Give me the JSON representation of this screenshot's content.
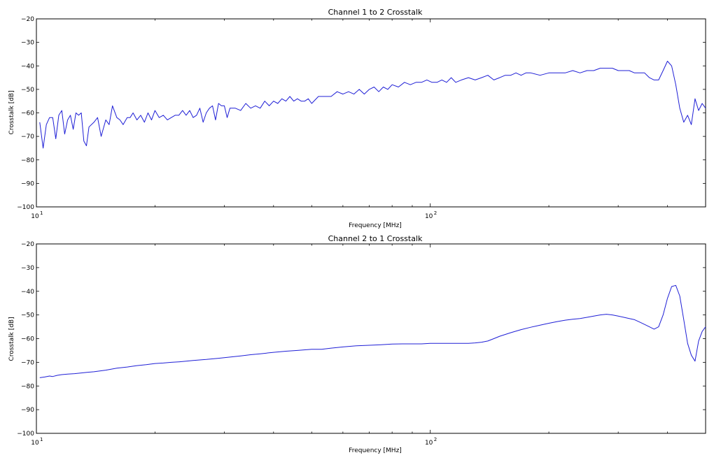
{
  "chart_data": [
    {
      "type": "line",
      "title": "Channel 1 to 2 Crosstalk",
      "xlabel": "Frequency [MHz]",
      "ylabel": "Crosstalk [dB]",
      "xscale": "log",
      "xlim": [
        10,
        500
      ],
      "ylim": [
        -100,
        -20
      ],
      "yticks": [
        -100,
        -90,
        -80,
        -70,
        -60,
        -50,
        -40,
        -30,
        -20
      ],
      "xtick_labels": [
        {
          "base": "10",
          "exp": "1",
          "value": 10
        },
        {
          "base": "10",
          "exp": "2",
          "value": 100
        }
      ],
      "color": "#1f1fd6",
      "grid": false,
      "series": [
        {
          "x": [
            10.2,
            10.4,
            10.6,
            10.8,
            11.0,
            11.2,
            11.4,
            11.6,
            11.8,
            12.0,
            12.2,
            12.4,
            12.6,
            12.8,
            13.0,
            13.2,
            13.4,
            13.6,
            14.0,
            14.3,
            14.6,
            15.0,
            15.3,
            15.6,
            16.0,
            16.3,
            16.6,
            17.0,
            17.3,
            17.6,
            18.0,
            18.4,
            18.8,
            19.2,
            19.6,
            20.0,
            20.5,
            21.0,
            21.5,
            22.0,
            22.5,
            23.0,
            23.5,
            24.0,
            24.5,
            25.0,
            25.5,
            26.0,
            26.5,
            27.0,
            27.5,
            28.0,
            28.5,
            29.0,
            29.5,
            30.0,
            30.5,
            31.0,
            32.0,
            33.0,
            34.0,
            35.0,
            36.0,
            37.0,
            38.0,
            39.0,
            40.0,
            41.0,
            42.0,
            43.0,
            44.0,
            45.0,
            46.0,
            47.0,
            48.0,
            49.0,
            50.0,
            52.0,
            54.0,
            56.0,
            58.0,
            60.0,
            62.0,
            64.0,
            66.0,
            68.0,
            70.0,
            72.0,
            74.0,
            76.0,
            78.0,
            80.0,
            83.0,
            86.0,
            89.0,
            92.0,
            95.0,
            98.0,
            101.0,
            104.0,
            107.0,
            110.0,
            113.0,
            116.0,
            120.0,
            125.0,
            130.0,
            135.0,
            140.0,
            145.0,
            150.0,
            155.0,
            160.0,
            165.0,
            170.0,
            175.0,
            180.0,
            190.0,
            200.0,
            210.0,
            220.0,
            230.0,
            240.0,
            250.0,
            260.0,
            270.0,
            280.0,
            290.0,
            300.0,
            310.0,
            320.0,
            330.0,
            340.0,
            350.0,
            360.0,
            370.0,
            380.0,
            390.0,
            400.0,
            410.0,
            420.0,
            430.0,
            440.0,
            450.0,
            460.0,
            470.0,
            480.0,
            490.0,
            500.0
          ],
          "values": [
            -64,
            -75,
            -65,
            -62,
            -62,
            -71,
            -61,
            -59,
            -69,
            -63,
            -61,
            -67,
            -60,
            -61,
            -60,
            -72,
            -74,
            -66,
            -64,
            -62,
            -70,
            -63,
            -65,
            -57,
            -62,
            -63,
            -65,
            -62,
            -62,
            -60,
            -63,
            -61,
            -64,
            -60,
            -63,
            -59,
            -62,
            -61,
            -63,
            -62,
            -61,
            -61,
            -59,
            -61,
            -59,
            -62,
            -61,
            -58,
            -64,
            -60,
            -58,
            -57,
            -63,
            -56,
            -57,
            -57,
            -62,
            -58,
            -58,
            -59,
            -56,
            -58,
            -57,
            -58,
            -55,
            -57,
            -55,
            -56,
            -54,
            -55,
            -53,
            -55,
            -54,
            -55,
            -55,
            -54,
            -56,
            -53,
            -53,
            -53,
            -51,
            -52,
            -51,
            -52,
            -50,
            -52,
            -50,
            -49,
            -51,
            -49,
            -50,
            -48,
            -49,
            -47,
            -48,
            -47,
            -47,
            -46,
            -47,
            -47,
            -46,
            -47,
            -45,
            -47,
            -46,
            -45,
            -46,
            -45,
            -44,
            -46,
            -45,
            -44,
            -44,
            -43,
            -44,
            -43,
            -43,
            -44,
            -43,
            -43,
            -43,
            -42,
            -43,
            -42,
            -42,
            -41,
            -41,
            -41,
            -42,
            -42,
            -42,
            -43,
            -43,
            -43,
            -45,
            -46,
            -46,
            -42,
            -38,
            -40,
            -48,
            -58,
            -64,
            -61,
            -65,
            -54,
            -59,
            -56,
            -58
          ]
        }
      ]
    },
    {
      "type": "line",
      "title": "Channel 2 to 1 Crosstalk",
      "xlabel": "Frequency [MHz]",
      "ylabel": "Crosstalk [dB]",
      "xscale": "log",
      "xlim": [
        10,
        500
      ],
      "ylim": [
        -100,
        -20
      ],
      "yticks": [
        -100,
        -90,
        -80,
        -70,
        -60,
        -50,
        -40,
        -30,
        -20
      ],
      "xtick_labels": [
        {
          "base": "10",
          "exp": "1",
          "value": 10
        },
        {
          "base": "10",
          "exp": "2",
          "value": 100
        }
      ],
      "color": "#1f1fd6",
      "grid": false,
      "series": [
        {
          "x": [
            10.2,
            10.5,
            10.8,
            11.0,
            11.3,
            11.6,
            12.0,
            12.5,
            13.0,
            13.5,
            14.0,
            15.0,
            16.0,
            17.0,
            18.0,
            19.0,
            20.0,
            21.0,
            22.0,
            23.0,
            24.0,
            25.0,
            27.0,
            29.0,
            31.0,
            33.0,
            35.0,
            37.0,
            40.0,
            43.0,
            46.0,
            50.0,
            53.0,
            56.0,
            60.0,
            65.0,
            70.0,
            75.0,
            80.0,
            85.0,
            90.0,
            95.0,
            100.0,
            105.0,
            110.0,
            115.0,
            120.0,
            125.0,
            130.0,
            135.0,
            140.0,
            145.0,
            150.0,
            160.0,
            170.0,
            180.0,
            190.0,
            200.0,
            210.0,
            220.0,
            230.0,
            240.0,
            250.0,
            260.0,
            270.0,
            280.0,
            290.0,
            300.0,
            310.0,
            320.0,
            330.0,
            340.0,
            350.0,
            360.0,
            370.0,
            380.0,
            390.0,
            400.0,
            410.0,
            420.0,
            430.0,
            440.0,
            450.0,
            460.0,
            470.0,
            480.0,
            490.0,
            500.0
          ],
          "values": [
            -76.5,
            -76.2,
            -75.8,
            -76.0,
            -75.5,
            -75.2,
            -75.0,
            -74.8,
            -74.5,
            -74.2,
            -74.0,
            -73.3,
            -72.5,
            -72.0,
            -71.4,
            -71.0,
            -70.5,
            -70.3,
            -70.0,
            -69.8,
            -69.5,
            -69.2,
            -68.8,
            -68.3,
            -67.8,
            -67.3,
            -66.8,
            -66.4,
            -65.8,
            -65.3,
            -65.0,
            -64.5,
            -64.5,
            -64.0,
            -63.5,
            -63.0,
            -62.8,
            -62.6,
            -62.3,
            -62.2,
            -62.2,
            -62.2,
            -62.0,
            -62.0,
            -62.0,
            -62.0,
            -62.0,
            -62.0,
            -61.8,
            -61.5,
            -61.0,
            -60.0,
            -59.0,
            -57.5,
            -56.2,
            -55.2,
            -54.3,
            -53.5,
            -52.8,
            -52.2,
            -51.8,
            -51.5,
            -51.0,
            -50.5,
            -50.0,
            -49.7,
            -50.0,
            -50.5,
            -51.0,
            -51.5,
            -52.0,
            -53.0,
            -54.0,
            -55.0,
            -56.0,
            -55.0,
            -50.0,
            -43.0,
            -38.0,
            -37.5,
            -42.0,
            -52.0,
            -62.0,
            -67.0,
            -69.5,
            -61.0,
            -57.0,
            -55.0
          ]
        }
      ]
    }
  ]
}
